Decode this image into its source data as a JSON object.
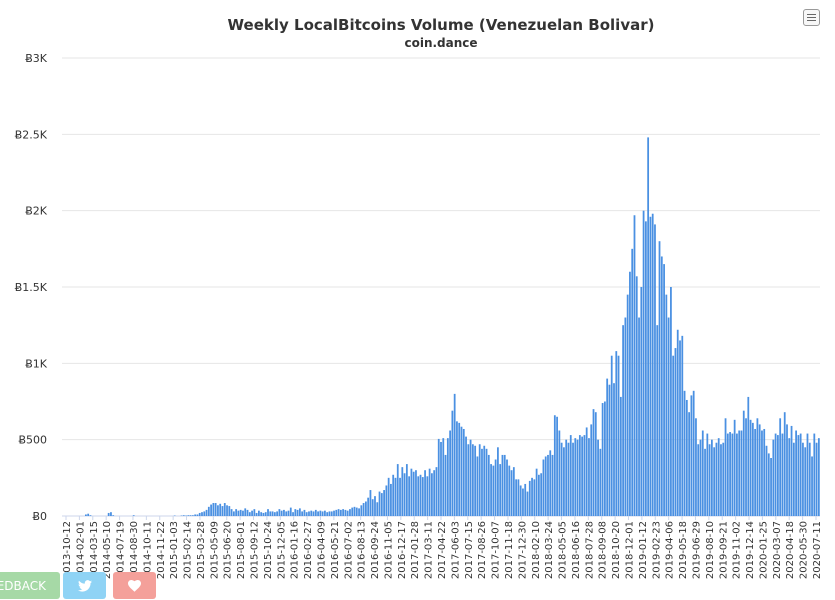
{
  "toolbar": {
    "menu_icon": "hamburger-icon"
  },
  "buttons": {
    "feedback_label": "EDBACK",
    "twitter_icon": "twitter-icon",
    "heart_icon": "heart-icon",
    "feedback_color": "#a6d9a6",
    "twitter_color": "#8fd3f5",
    "heart_color": "#f4a09a"
  },
  "chart_data": {
    "type": "bar",
    "title": "Weekly LocalBitcoins Volume (Venezuelan Bolivar)",
    "subtitle": "coin.dance",
    "bar_color": "#4a90e2",
    "grid": true,
    "ylim": [
      0,
      3000
    ],
    "yticks": [
      0,
      500,
      1000,
      1500,
      2000,
      2500,
      3000
    ],
    "ytick_labels": [
      "Ƀ0",
      "Ƀ500",
      "Ƀ1K",
      "Ƀ1.5K",
      "Ƀ2K",
      "Ƀ2.5K",
      "Ƀ3K"
    ],
    "xtick_labels": [
      "2013-10-12",
      "2014-02-01",
      "2014-03-15",
      "2014-05-10",
      "2014-07-19",
      "2014-08-30",
      "2014-10-11",
      "2014-11-22",
      "2015-01-03",
      "2015-02-14",
      "2015-03-28",
      "2015-05-09",
      "2015-06-20",
      "2015-08-01",
      "2015-09-12",
      "2015-10-24",
      "2015-12-05",
      "2016-01-16",
      "2016-02-27",
      "2016-04-09",
      "2016-05-21",
      "2016-07-02",
      "2016-08-13",
      "2016-09-24",
      "2016-11-05",
      "2016-12-17",
      "2017-01-28",
      "2017-03-11",
      "2017-04-22",
      "2017-06-03",
      "2017-07-15",
      "2017-08-26",
      "2017-10-07",
      "2017-11-18",
      "2017-12-30",
      "2018-02-10",
      "2018-03-24",
      "2018-05-05",
      "2018-06-16",
      "2018-07-28",
      "2018-09-08",
      "2018-10-20",
      "2018-12-01",
      "2019-01-12",
      "2019-02-23",
      "2019-04-06",
      "2019-05-18",
      "2019-06-29",
      "2019-08-10",
      "2019-09-21",
      "2019-11-02",
      "2019-12-14",
      "2020-01-25",
      "2020-03-07",
      "2020-04-18",
      "2020-05-30",
      "2020-07-11"
    ],
    "values": [
      0,
      0,
      0,
      0,
      0,
      0,
      0,
      0,
      0,
      0,
      10,
      15,
      5,
      0,
      0,
      0,
      0,
      0,
      0,
      0,
      20,
      25,
      5,
      0,
      0,
      0,
      0,
      0,
      0,
      0,
      0,
      5,
      0,
      0,
      0,
      0,
      0,
      0,
      0,
      0,
      0,
      0,
      0,
      0,
      0,
      0,
      0,
      0,
      0,
      3,
      0,
      0,
      3,
      5,
      3,
      5,
      5,
      5,
      10,
      10,
      20,
      25,
      30,
      40,
      60,
      75,
      85,
      85,
      70,
      80,
      65,
      85,
      70,
      65,
      45,
      30,
      45,
      35,
      40,
      35,
      50,
      40,
      25,
      35,
      45,
      20,
      35,
      25,
      20,
      25,
      45,
      30,
      30,
      25,
      30,
      45,
      35,
      40,
      30,
      35,
      55,
      25,
      45,
      40,
      50,
      30,
      40,
      25,
      30,
      35,
      30,
      40,
      30,
      35,
      30,
      35,
      25,
      30,
      30,
      35,
      40,
      45,
      40,
      45,
      40,
      35,
      45,
      55,
      60,
      55,
      50,
      70,
      85,
      95,
      120,
      170,
      110,
      130,
      90,
      160,
      150,
      170,
      200,
      250,
      210,
      270,
      250,
      340,
      250,
      320,
      280,
      340,
      260,
      310,
      290,
      300,
      260,
      270,
      255,
      300,
      260,
      310,
      280,
      300,
      320,
      505,
      485,
      510,
      400,
      510,
      560,
      690,
      800,
      620,
      610,
      585,
      570,
      520,
      470,
      500,
      470,
      460,
      390,
      470,
      440,
      460,
      440,
      400,
      340,
      330,
      370,
      450,
      340,
      400,
      400,
      370,
      330,
      300,
      320,
      240,
      240,
      200,
      180,
      210,
      160,
      230,
      250,
      240,
      310,
      270,
      280,
      370,
      390,
      400,
      430,
      400,
      660,
      650,
      560,
      480,
      450,
      500,
      480,
      530,
      480,
      510,
      500,
      530,
      520,
      530,
      580,
      510,
      600,
      700,
      680,
      500,
      440,
      740,
      750,
      900,
      860,
      1050,
      870,
      1080,
      1050,
      780,
      1250,
      1300,
      1450,
      1600,
      1750,
      1970,
      1570,
      1300,
      1500,
      2000,
      1930,
      2480,
      1960,
      1980,
      1910,
      1250,
      1800,
      1700,
      1650,
      1450,
      1300,
      1500,
      1050,
      1100,
      1220,
      1150,
      1180,
      820,
      760,
      680,
      790,
      820,
      640,
      470,
      500,
      560,
      440,
      540,
      470,
      500,
      450,
      480,
      510,
      470,
      480,
      640,
      540,
      550,
      540,
      630,
      540,
      560,
      560,
      690,
      640,
      780,
      630,
      610,
      570,
      640,
      600,
      560,
      570,
      460,
      410,
      380,
      500,
      540,
      530,
      640,
      540,
      680,
      600,
      510,
      590,
      480,
      560,
      530,
      540,
      480,
      450,
      540,
      480,
      390,
      540,
      480,
      510
    ],
    "categories_note": "weekly bars, x positions follow the printed date tick labels"
  }
}
